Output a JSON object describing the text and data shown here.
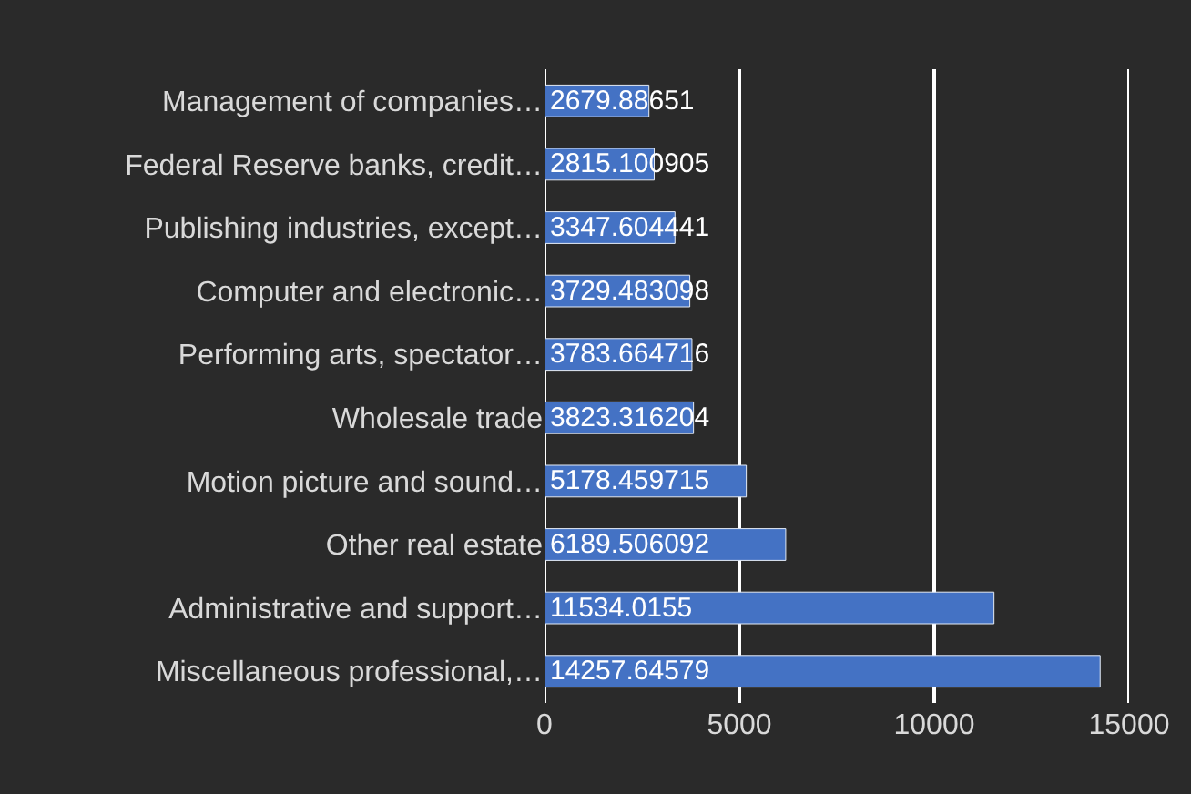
{
  "chart_data": {
    "type": "bar",
    "orientation": "horizontal",
    "categories": [
      "Management of companies…",
      "Federal Reserve banks, credit…",
      "Publishing industries, except…",
      "Computer and electronic…",
      "Performing arts, spectator…",
      "Wholesale trade",
      "Motion picture and sound…",
      "Other real estate",
      "Administrative and support…",
      "Miscellaneous professional,…"
    ],
    "values": [
      2679.88651,
      2815.100905,
      3347.604441,
      3729.483098,
      3783.664716,
      3823.316204,
      5178.459715,
      6189.506092,
      11534.0155,
      14257.64579
    ],
    "color": "#4472c4",
    "xlim": [
      0,
      15000
    ],
    "xticks": [
      0,
      5000,
      10000,
      15000
    ],
    "grid": "x",
    "data_labels": true
  }
}
